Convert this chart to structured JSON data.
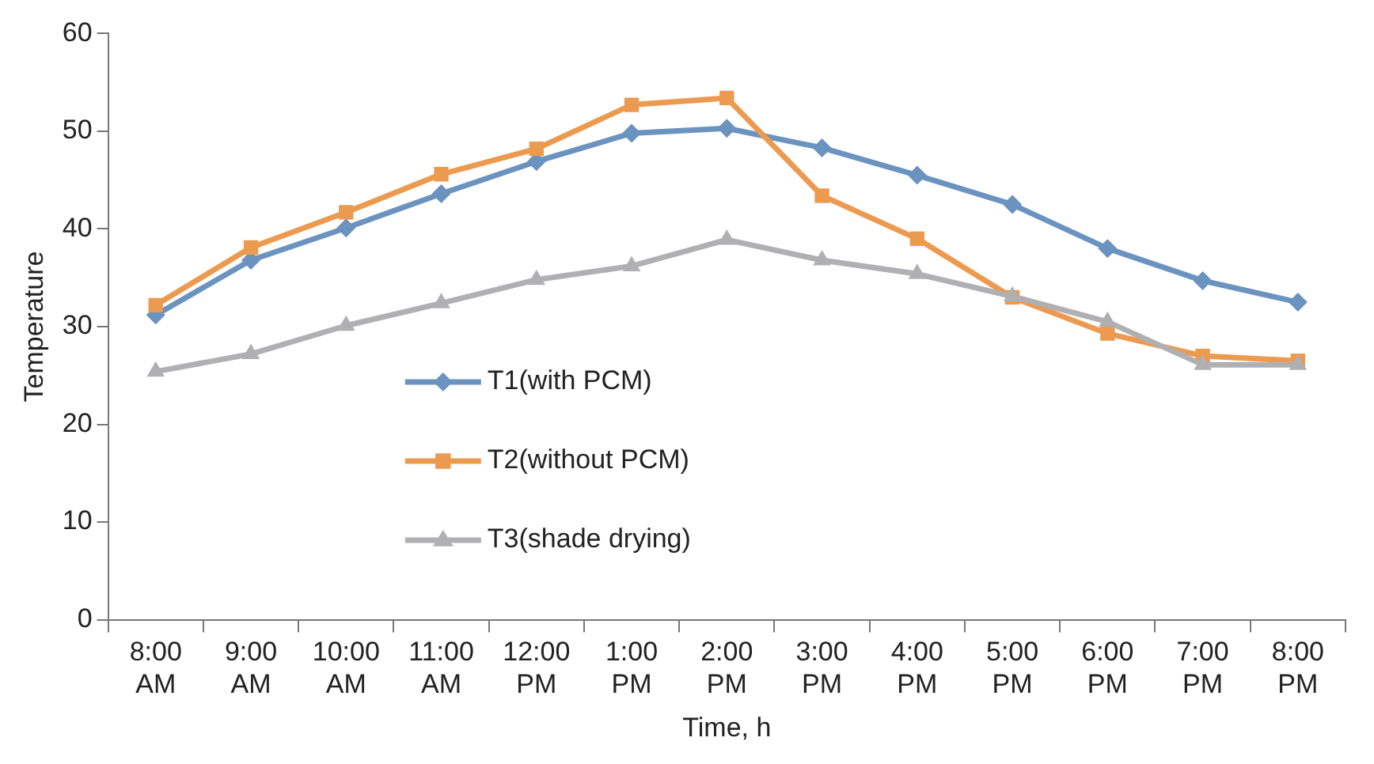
{
  "chart_data": {
    "type": "line",
    "xlabel": "Time, h",
    "ylabel": "Temperature",
    "categories": [
      "8:00 AM",
      "9:00 AM",
      "10:00 AM",
      "11:00 AM",
      "12:00 PM",
      "1:00 PM",
      "2:00 PM",
      "3:00 PM",
      "4:00 PM",
      "5:00 PM",
      "6:00 PM",
      "7:00 PM",
      "8:00 PM"
    ],
    "series": [
      {
        "name": "T1(with PCM)",
        "color": "#6b93c0",
        "marker": "diamond",
        "values": [
          31.2,
          36.8,
          40.1,
          43.6,
          46.9,
          49.8,
          50.3,
          48.3,
          45.5,
          42.5,
          38,
          34.7,
          32.5
        ]
      },
      {
        "name": "T2(without PCM)",
        "color": "#ec9a4f",
        "marker": "square",
        "values": [
          32.2,
          38.1,
          41.7,
          45.6,
          48.2,
          52.7,
          53.4,
          43.4,
          39,
          33,
          29.3,
          27,
          26.5
        ]
      },
      {
        "name": "T3(shade drying)",
        "color": "#b0b0b2",
        "marker": "triangle",
        "values": [
          25.4,
          27.2,
          30.1,
          32.4,
          34.8,
          36.2,
          38.9,
          36.8,
          35.4,
          33.1,
          30.5,
          26.1,
          26.1
        ]
      }
    ],
    "ylim": [
      0,
      60
    ],
    "yticks": [
      0,
      10,
      20,
      30,
      40,
      50,
      60
    ],
    "grid": false,
    "legend": "center left",
    "line_style": "solid"
  }
}
